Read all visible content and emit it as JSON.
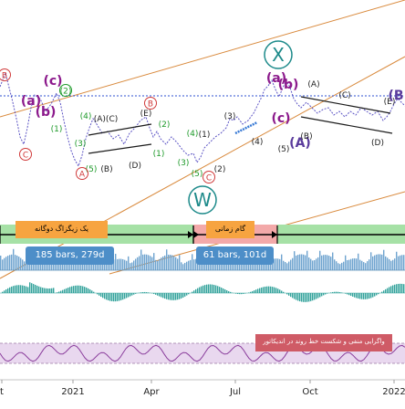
{
  "colors": {
    "price_line": "#5b53c4",
    "channel": "#d98a3d",
    "target_dotted": "#2f50d0",
    "label_magenta": "#8c1a8c",
    "label_green": "#1e9a2a",
    "label_red": "#d03a3a",
    "label_dark": "#222222",
    "label_x_w": "#1d8a8a",
    "label_A_big": "#5a3b9c",
    "band_green": "#a6e1a6",
    "band_red": "#f3a9a9",
    "volume": "#6fa4cf",
    "oscillator": "#34a39c",
    "rsi_line": "#8a3d9c",
    "rsi_band": "#e9d8ef",
    "box_orange": "#f7a440",
    "box_red": "#cf5b66",
    "pill_blue": "#4d8ec8"
  },
  "chart_data": {
    "type": "line",
    "x_axis": {
      "tick_labels": [
        "t",
        "2021",
        "Apr",
        "Jul",
        "Oct",
        "2022"
      ]
    },
    "wave_labels": [
      {
        "text": "B",
        "style": "circle",
        "color": "label_red"
      },
      {
        "text": "(a)",
        "style": "plain",
        "color": "label_magenta"
      },
      {
        "text": "(b)",
        "style": "plain",
        "color": "label_magenta"
      },
      {
        "text": "(c)",
        "style": "plain",
        "color": "label_magenta"
      },
      {
        "text": "(2)",
        "style": "circle",
        "color": "label_green"
      },
      {
        "text": "(1)",
        "style": "plain",
        "color": "label_green"
      },
      {
        "text": "C",
        "style": "circle",
        "color": "label_red"
      },
      {
        "text": "(4)",
        "style": "plain",
        "color": "label_green"
      },
      {
        "text": "(A)(C)",
        "style": "plain",
        "color": "label_dark"
      },
      {
        "text": "(3)",
        "style": "plain",
        "color": "label_green"
      },
      {
        "text": "(5)",
        "style": "plain",
        "color": "label_green"
      },
      {
        "text": "A",
        "style": "circle",
        "color": "label_red"
      },
      {
        "text": "(B)",
        "style": "plain",
        "color": "label_dark"
      },
      {
        "text": "(E)",
        "style": "plain",
        "color": "label_dark"
      },
      {
        "text": "B",
        "style": "circle",
        "color": "label_red"
      },
      {
        "text": "(2)",
        "style": "plain",
        "color": "label_green"
      },
      {
        "text": "(D)",
        "style": "plain",
        "color": "label_dark"
      },
      {
        "text": "(1)",
        "style": "plain",
        "color": "label_green"
      },
      {
        "text": "(3)",
        "style": "plain",
        "color": "label_green"
      },
      {
        "text": "(4)",
        "style": "plain",
        "color": "label_green"
      },
      {
        "text": "(5)",
        "style": "plain",
        "color": "label_green"
      },
      {
        "text": "C",
        "style": "circle",
        "color": "label_red"
      },
      {
        "text": "(1)",
        "style": "plain",
        "color": "label_dark"
      },
      {
        "text": "(2)",
        "style": "plain",
        "color": "label_dark"
      },
      {
        "text": "W",
        "style": "big-circle",
        "color": "label_x_w"
      },
      {
        "text": "(3)",
        "style": "plain",
        "color": "label_dark"
      },
      {
        "text": "(4)",
        "style": "plain",
        "color": "label_dark"
      },
      {
        "text": "(5)",
        "style": "plain",
        "color": "label_dark"
      },
      {
        "text": "X",
        "style": "big-circle",
        "color": "label_x_w"
      },
      {
        "text": "(a)",
        "style": "plain",
        "color": "label_magenta"
      },
      {
        "text": "(b)",
        "style": "plain",
        "color": "label_magenta"
      },
      {
        "text": "(c)",
        "style": "plain",
        "color": "label_magenta"
      },
      {
        "text": "(A)",
        "style": "plain",
        "color": "label_A_big"
      },
      {
        "text": "(A)",
        "style": "plain",
        "color": "label_dark"
      },
      {
        "text": "(B)",
        "style": "plain",
        "color": "label_dark"
      },
      {
        "text": "(C)",
        "style": "plain",
        "color": "label_dark"
      },
      {
        "text": "(D)",
        "style": "plain",
        "color": "label_dark"
      },
      {
        "text": "(E)",
        "style": "plain",
        "color": "label_dark"
      },
      {
        "text": "(B",
        "style": "plain",
        "color": "label_A_big"
      }
    ],
    "range_boxes": [
      {
        "label": "یک زیگزاگ دوگانه",
        "stat": "185 bars, 279d",
        "color": "box_orange",
        "band": "band_green"
      },
      {
        "label": "گام زمانی",
        "stat": "61 bars, 101d",
        "color": "box_orange",
        "band": "band_red"
      }
    ],
    "rsi_panel": {
      "label": "واگرایی منفی و شکست خط روند در اندیکاتور"
    },
    "grid": false
  }
}
